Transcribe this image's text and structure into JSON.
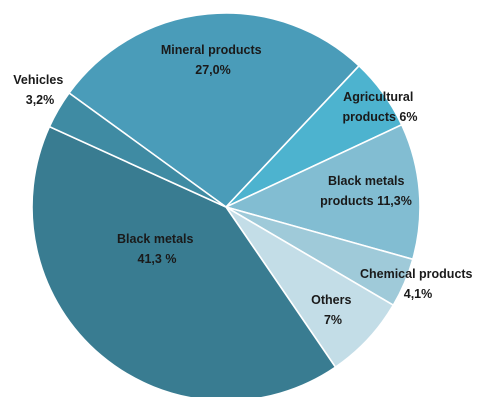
{
  "chart_data": {
    "type": "pie",
    "slices": [
      {
        "label_lines": [
          "Mineral products",
          "27,0%"
        ],
        "value": 27.0,
        "color": "#4a9cb9"
      },
      {
        "label_lines": [
          "Agricultural",
          "products  6%"
        ],
        "value": 6.0,
        "color": "#4db3cf"
      },
      {
        "label_lines": [
          "Black metals",
          "products  11,3%"
        ],
        "value": 11.3,
        "color": "#82bdd2"
      },
      {
        "label_lines": [
          "Chemical products",
          "4,1%"
        ],
        "value": 4.1,
        "color": "#9fcad9"
      },
      {
        "label_lines": [
          "Others",
          "7%"
        ],
        "value": 7.0,
        "color": "#c3dde7"
      },
      {
        "label_lines": [
          "Black metals",
          "41,3 %"
        ],
        "value": 41.3,
        "color": "#397c91"
      },
      {
        "label_lines": [
          "Vehicles",
          "3,2%"
        ],
        "value": 3.2,
        "color": "#3f8ba3"
      }
    ]
  }
}
